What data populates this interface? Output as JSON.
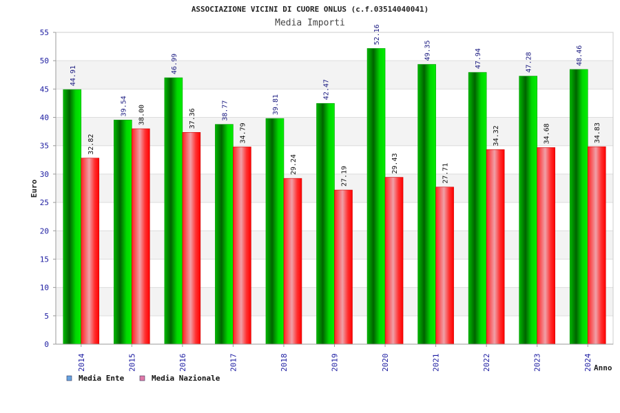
{
  "chart_data": {
    "type": "bar",
    "title": "ASSOCIAZIONE VICINI DI CUORE ONLUS (c.f.03514040041)",
    "subtitle": "Media Importi",
    "xlabel": "Anno",
    "ylabel": "Euro",
    "ylim": [
      0,
      55
    ],
    "yticks": [
      "0",
      "5",
      "10",
      "15",
      "20",
      "25",
      "30",
      "35",
      "40",
      "45",
      "50",
      "55"
    ],
    "ytick_values": [
      0,
      5,
      10,
      15,
      20,
      25,
      30,
      35,
      40,
      45,
      50,
      55
    ],
    "categories": [
      "2014",
      "2015",
      "2016",
      "2017",
      "2018",
      "2019",
      "2020",
      "2021",
      "2022",
      "2023",
      "2024"
    ],
    "series": [
      {
        "name": "Media Ente",
        "values": [
          44.91,
          39.54,
          46.99,
          38.77,
          39.81,
          42.47,
          52.16,
          49.35,
          47.94,
          47.28,
          48.46
        ],
        "labels": [
          "44.91",
          "39.54",
          "46.99",
          "38.77",
          "39.81",
          "42.47",
          "52.16",
          "49.35",
          "47.94",
          "47.28",
          "48.46"
        ],
        "color": "#00c000",
        "legend_color": "#66a3e0"
      },
      {
        "name": "Media Nazionale",
        "values": [
          32.82,
          38.0,
          37.36,
          34.79,
          29.24,
          27.19,
          29.43,
          27.71,
          34.32,
          34.68,
          34.83
        ],
        "labels": [
          "32.82",
          "38.00",
          "37.36",
          "34.79",
          "29.24",
          "27.19",
          "29.43",
          "27.71",
          "34.32",
          "34.68",
          "34.83"
        ],
        "color": "#ff0000",
        "legend_color": "#e07aa8"
      }
    ],
    "grid": true,
    "legend_position": "bottom-left"
  }
}
